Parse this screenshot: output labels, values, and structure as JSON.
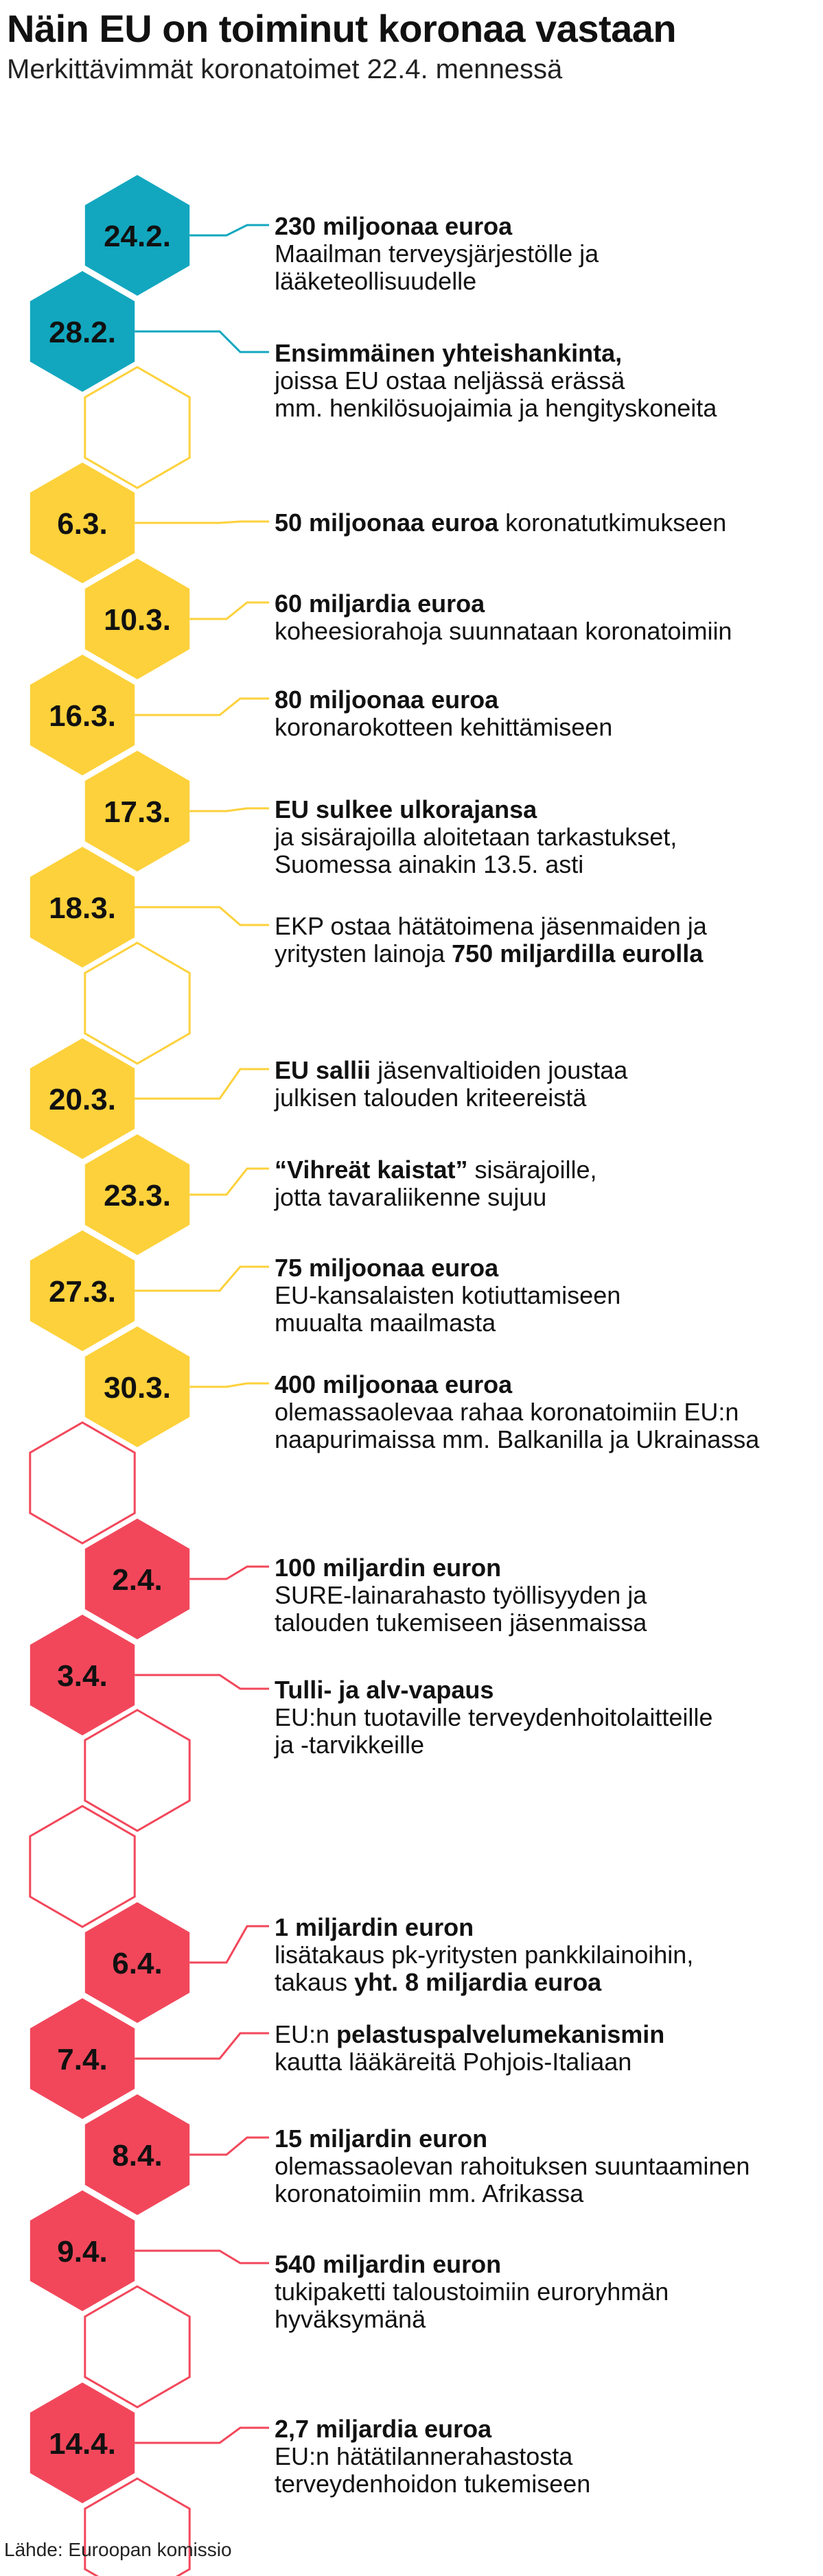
{
  "header": {
    "title": "Näin EU on toiminut koronaa vastaan",
    "subtitle": "Merkittävimmät koronatoimet 22.4. mennessä"
  },
  "colors": {
    "teal": "#12a7bf",
    "yellow": "#fdd13b",
    "red": "#f2475b",
    "white": "#ffffff"
  },
  "events": [
    {
      "date": "24.2.",
      "color": "teal",
      "segments": [
        {
          "text": "230 miljoonaa euroa",
          "bold": true
        },
        {
          "text": "\nMaailman terveysjärjestölle ja\nlääketeollisuudelle",
          "bold": false
        }
      ]
    },
    {
      "date": "28.2.",
      "color": "teal",
      "segments": [
        {
          "text": "Ensimmäinen yhteishankinta,",
          "bold": true
        },
        {
          "text": "\njoissa EU ostaa neljässä erässä\nmm. henkilösuojaimia ja hengityskoneita",
          "bold": false
        }
      ]
    },
    {
      "date": "6.3.",
      "color": "yellow",
      "segments": [
        {
          "text": "50 miljoonaa euroa",
          "bold": true
        },
        {
          "text": " koronatutkimukseen",
          "bold": false
        }
      ]
    },
    {
      "date": "10.3.",
      "color": "yellow",
      "segments": [
        {
          "text": "60 miljardia euroa",
          "bold": true
        },
        {
          "text": "\nkoheesiorahoja suunnataan koronatoimiin",
          "bold": false
        }
      ]
    },
    {
      "date": "16.3.",
      "color": "yellow",
      "segments": [
        {
          "text": "80 miljoonaa euroa",
          "bold": true
        },
        {
          "text": "\nkoronarokotteen kehittämiseen",
          "bold": false
        }
      ]
    },
    {
      "date": "17.3.",
      "color": "yellow",
      "segments": [
        {
          "text": "EU sulkee ulkorajansa",
          "bold": true
        },
        {
          "text": "\nja sisärajoilla aloitetaan tarkastukset,\nSuomessa ainakin 13.5. asti",
          "bold": false
        }
      ]
    },
    {
      "date": "18.3.",
      "color": "yellow",
      "segments": [
        {
          "text": "EKP ostaa hätätoimena jäsenmaiden ja\nyritysten lainoja ",
          "bold": false
        },
        {
          "text": "750 miljardilla eurolla",
          "bold": true
        }
      ]
    },
    {
      "date": "20.3.",
      "color": "yellow",
      "segments": [
        {
          "text": "EU sallii",
          "bold": true
        },
        {
          "text": " jäsenvaltioiden joustaa\njulkisen talouden kriteereistä",
          "bold": false
        }
      ]
    },
    {
      "date": "23.3.",
      "color": "yellow",
      "segments": [
        {
          "text": "“Vihreät kaistat”",
          "bold": true
        },
        {
          "text": " sisärajoille,\njotta tavaraliikenne sujuu",
          "bold": false
        }
      ]
    },
    {
      "date": "27.3.",
      "color": "yellow",
      "segments": [
        {
          "text": "75 miljoonaa euroa",
          "bold": true
        },
        {
          "text": "\nEU-kansalaisten kotiuttamiseen\nmuualta maailmasta",
          "bold": false
        }
      ]
    },
    {
      "date": "30.3.",
      "color": "yellow",
      "segments": [
        {
          "text": "400 miljoonaa euroa",
          "bold": true
        },
        {
          "text": "\nolemassaolevaa rahaa koronatoimiin EU:n\nnaapurimaissa mm. Balkanilla ja Ukrainassa",
          "bold": false
        }
      ]
    },
    {
      "date": "2.4.",
      "color": "red",
      "segments": [
        {
          "text": "100 miljardin euron",
          "bold": true
        },
        {
          "text": "\nSURE-lainarahasto työllisyyden ja\ntalouden tukemiseen jäsenmaissa",
          "bold": false
        }
      ]
    },
    {
      "date": "3.4.",
      "color": "red",
      "segments": [
        {
          "text": "Tulli- ja alv-vapaus",
          "bold": true
        },
        {
          "text": "\nEU:hun tuotaville terveydenhoitolaitteille\nja -tarvikkeille",
          "bold": false
        }
      ]
    },
    {
      "date": "6.4.",
      "color": "red",
      "segments": [
        {
          "text": "1 miljardin euron",
          "bold": true
        },
        {
          "text": "\nlisätakaus pk-yritysten pankkilainoihin,\ntakaus ",
          "bold": false
        },
        {
          "text": "yht. 8 miljardia euroa",
          "bold": true
        }
      ]
    },
    {
      "date": "7.4.",
      "color": "red",
      "segments": [
        {
          "text": "EU:n ",
          "bold": false
        },
        {
          "text": "pelastuspalvelumekanismin",
          "bold": true
        },
        {
          "text": "\nkautta lääkäreitä Pohjois-Italiaan",
          "bold": false
        }
      ]
    },
    {
      "date": "8.4.",
      "color": "red",
      "segments": [
        {
          "text": "15 miljardin euron",
          "bold": true
        },
        {
          "text": "\nolemassaolevan rahoituksen suuntaaminen\nkoronatoimiin mm. Afrikassa",
          "bold": false
        }
      ]
    },
    {
      "date": "9.4.",
      "color": "red",
      "segments": [
        {
          "text": "540 miljardin euron",
          "bold": true
        },
        {
          "text": "\ntukipaketti taloustoimiin euroryhmän\nhyväksymänä",
          "bold": false
        }
      ]
    },
    {
      "date": "14.4.",
      "color": "red",
      "segments": [
        {
          "text": "2,7 miljardia euroa",
          "bold": true
        },
        {
          "text": "\nEU:n hätätilannerahastosta\nterveydenhoidon tukemiseen",
          "bold": false
        }
      ]
    }
  ],
  "empty_days": [
    {
      "color": "yellow"
    },
    {
      "color": "yellow"
    },
    {
      "color": "red"
    },
    {
      "color": "red"
    },
    {
      "color": "red"
    },
    {
      "color": "red"
    },
    {
      "color": "red"
    }
  ],
  "footer": {
    "source": "Lähde: Euroopan komissio"
  }
}
